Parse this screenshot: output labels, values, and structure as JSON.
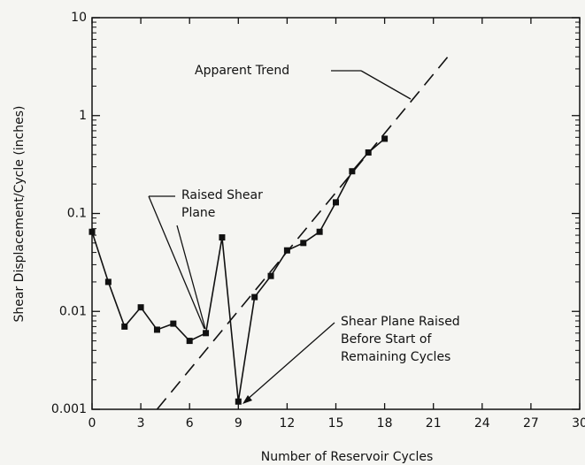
{
  "chart_data": {
    "type": "line",
    "x_label": "Number of Reservoir Cycles",
    "y_label": "Shear Displacement/Cycle (inches)",
    "xlim": [
      0,
      30
    ],
    "xticks": [
      0,
      3,
      6,
      9,
      12,
      15,
      18,
      21,
      24,
      27,
      30
    ],
    "ylim": [
      0.001,
      10
    ],
    "yticks": [
      0.001,
      0.01,
      0.1,
      1,
      10
    ],
    "log_y": true,
    "series": [
      {
        "color": "#111111",
        "x": [
          0,
          1,
          2,
          3,
          4,
          5,
          6,
          7,
          8,
          9,
          10,
          11,
          12,
          13,
          14,
          15,
          16,
          17,
          18
        ],
        "values": [
          0.065,
          0.02,
          0.007,
          0.011,
          0.0065,
          0.0075,
          0.005,
          0.006,
          0.057,
          0.0012,
          0.014,
          0.023,
          0.042,
          0.05,
          0.065,
          0.13,
          0.27,
          0.42,
          0.58
        ]
      },
      {
        "name": "Apparent Trend",
        "color": "#111111",
        "dashed": true,
        "x": [
          4,
          22
        ],
        "values": [
          0.001,
          4.2
        ]
      }
    ],
    "annotations": [
      "Raised Shear",
      "Plane",
      "Shear Plane Raised",
      "Before Start of",
      "Remaining Cycles"
    ]
  }
}
